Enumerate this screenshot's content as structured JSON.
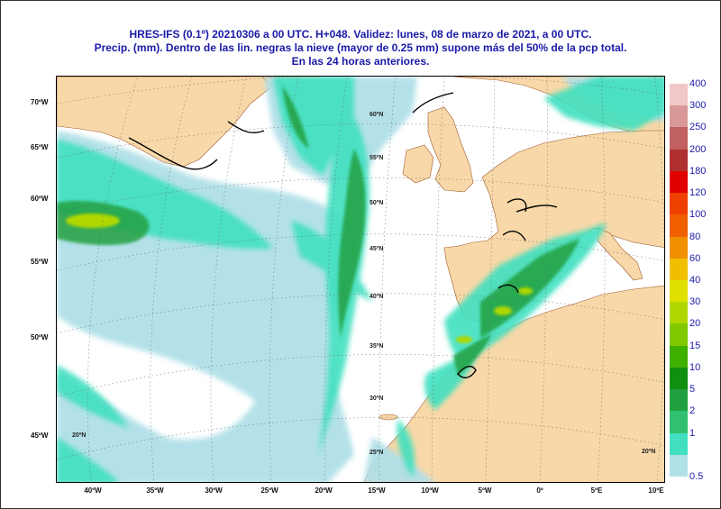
{
  "title": {
    "line1": "HRES-IFS (0.1º) 20210306 a 00 UTC.  H+048. Validez: lunes, 08 de marzo de 2021,  a  00 UTC.",
    "line2": "Precip. (mm). Dentro de las lin. negras la nieve (mayor de 0.25 mm) supone más del 50% de la pcp total.",
    "line3": "En las 24 horas anteriores."
  },
  "lat_labels_left": [
    "70ºW",
    "65ºW",
    "60ºW",
    "55ºW",
    "50ºW",
    "45ºW"
  ],
  "lon_labels_bottom": [
    "40ºW",
    "35ºW",
    "30ºW",
    "25ºW",
    "20ºW",
    "15ºW",
    "10ºW",
    "5ºW",
    "0º",
    "5ºE",
    "10ºE"
  ],
  "inner_lat_labels": [
    "60ºN",
    "55ºN",
    "50ºN",
    "45ºN",
    "40ºN",
    "35ºN",
    "30ºN",
    "25ºN",
    "20ºN",
    "20ºN"
  ],
  "legend": {
    "labels": [
      "400",
      "300",
      "250",
      "200",
      "180",
      "120",
      "100",
      "80",
      "60",
      "40",
      "30",
      "20",
      "15",
      "10",
      "5",
      "2",
      "1",
      "0.5"
    ],
    "colors": [
      "#f0c8c8",
      "#d89898",
      "#c06060",
      "#b03030",
      "#e00000",
      "#f04000",
      "#f06000",
      "#f09000",
      "#f0c000",
      "#e0e000",
      "#b0d800",
      "#80c800",
      "#40b000",
      "#109010",
      "#20a040",
      "#30c070",
      "#40e0c0",
      "#b0e0e8"
    ]
  },
  "colors": {
    "title": "#1a1aa8",
    "land": "#f8d8a8",
    "sea": "#ffffff",
    "precip_light": "#b0e0e8",
    "precip_mid": "#40e0c0",
    "precip_heavy": "#20a040"
  }
}
